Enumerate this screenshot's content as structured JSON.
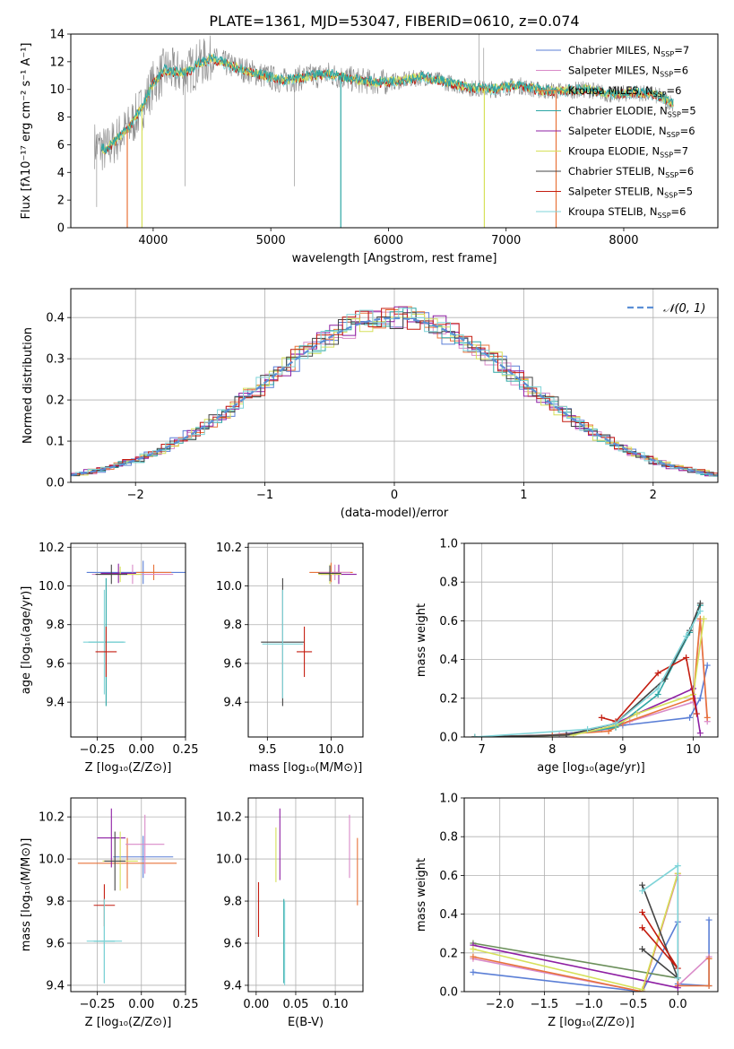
{
  "figure": {
    "title": "PLATE=1361, MJD=53047, FIBERID=0610, z=0.074",
    "colors": {
      "chabrier_miles": "#5b7fd6",
      "salpeter_miles": "#d98ac8",
      "kroupa_miles": "#2ca6a4",
      "chabrier_elodie": "#6b8f5a",
      "salpeter_elodie": "#8e1fa3",
      "kroupa_elodie": "#d6e05a",
      "chabrier_stelib": "#444444",
      "salpeter_stelib": "#c41d10",
      "kroupa_stelib": "#7fd4d8",
      "miles_orange": "#e8733a",
      "spectrum_gray": "#888888"
    }
  },
  "chart_data": [
    {
      "type": "line",
      "id": "spectrum",
      "title": "PLATE=1361, MJD=53047, FIBERID=0610, z=0.074",
      "xlabel": "wavelength [Angstrom, rest frame]",
      "ylabel": "Flux [fλ10⁻¹⁷ erg cm⁻² s⁻¹ A⁻¹]",
      "xlim": [
        3300,
        8800
      ],
      "ylim": [
        0,
        14
      ],
      "xticks": [
        "4000",
        "5000",
        "6000",
        "7000",
        "8000"
      ],
      "xtick_values": [
        4000,
        5000,
        6000,
        7000,
        8000
      ],
      "yticks": [
        "0",
        "2",
        "4",
        "6",
        "8",
        "10",
        "12",
        "14"
      ],
      "ytick_values": [
        0,
        2,
        4,
        6,
        8,
        10,
        12,
        14
      ],
      "legend_position": "top-right",
      "legend": [
        {
          "label": "Chabrier MILES, N",
          "sub": "SSP",
          "tail": "=7",
          "color": "#5b7fd6"
        },
        {
          "label": "Salpeter MILES, N",
          "sub": "SSP",
          "tail": "=6",
          "color": "#d98ac8"
        },
        {
          "label": "Kroupa MILES, N",
          "sub": "SSP",
          "tail": "=6",
          "color": "#e8733a"
        },
        {
          "label": "Chabrier ELODIE, N",
          "sub": "SSP",
          "tail": "=5",
          "color": "#2ca6a4"
        },
        {
          "label": "Salpeter ELODIE, N",
          "sub": "SSP",
          "tail": "=6",
          "color": "#8e1fa3"
        },
        {
          "label": "Kroupa ELODIE, N",
          "sub": "SSP",
          "tail": "=7",
          "color": "#d6e05a"
        },
        {
          "label": "Chabrier STELIB, N",
          "sub": "SSP",
          "tail": "=6",
          "color": "#444444"
        },
        {
          "label": "Salpeter STELIB, N",
          "sub": "SSP",
          "tail": "=5",
          "color": "#c41d10"
        },
        {
          "label": "Kroupa STELIB, N",
          "sub": "SSP",
          "tail": "=6",
          "color": "#7fd4d8"
        }
      ],
      "continuum": {
        "x": [
          3500,
          3600,
          3700,
          3800,
          3900,
          4000,
          4100,
          4200,
          4300,
          4400,
          4500,
          4700,
          4900,
          5100,
          5300,
          5500,
          5700,
          5900,
          6100,
          6300,
          6500,
          6700,
          6900,
          7100,
          7300,
          7500,
          7700,
          7900,
          8100,
          8300,
          8420
        ],
        "y": [
          6.0,
          5.6,
          6.5,
          7.3,
          8.6,
          10.4,
          11.4,
          11.2,
          11.3,
          11.9,
          12.2,
          11.6,
          11.1,
          10.6,
          10.9,
          11.1,
          10.7,
          10.5,
          10.6,
          10.9,
          10.5,
          10.1,
          10.0,
          10.3,
          9.9,
          9.9,
          10.0,
          9.6,
          9.8,
          9.5,
          9.0
        ]
      },
      "drops": [
        {
          "x": 3780,
          "color": "#e8733a"
        },
        {
          "x": 3905,
          "color": "#d6e05a"
        },
        {
          "x": 5595,
          "color": "#2ca6a4"
        },
        {
          "x": 6815,
          "color": "#d6e05a"
        },
        {
          "x": 7425,
          "color": "#e8733a"
        }
      ]
    },
    {
      "type": "line",
      "id": "residuals",
      "xlabel": "(data-model)/error",
      "ylabel": "Normed distribution",
      "xlim": [
        -2.5,
        2.5
      ],
      "ylim": [
        0,
        0.47
      ],
      "xticks": [
        "−2",
        "−1",
        "0",
        "1",
        "2"
      ],
      "xtick_values": [
        -2,
        -1,
        0,
        1,
        2
      ],
      "yticks": [
        "0.0",
        "0.1",
        "0.2",
        "0.3",
        "0.4"
      ],
      "ytick_values": [
        0,
        0.1,
        0.2,
        0.3,
        0.4
      ],
      "grid": true,
      "legend_position": "top-right",
      "legend_label": "𝒩(0, 1)",
      "series": [
        {
          "name": "N(0,1)",
          "values": "gaussian",
          "color": "#5b8fd6"
        }
      ],
      "bin_width": 0.1,
      "hist_count": 9
    },
    {
      "type": "scatter",
      "id": "z-age",
      "xlabel": "Z [log₁₀(Z/Z⊙)]",
      "ylabel": "age  [log₁₀(age/yr)]",
      "xlim": [
        -0.4,
        0.25
      ],
      "ylim": [
        9.22,
        10.22
      ],
      "xticks": [
        "−0.25",
        "0.00",
        "0.25"
      ],
      "xtick_values": [
        -0.25,
        0.0,
        0.25
      ],
      "yticks": [
        "9.4",
        "9.6",
        "9.8",
        "10.0",
        "10.2"
      ],
      "ytick_values": [
        9.4,
        9.6,
        9.8,
        10.0,
        10.2
      ],
      "grid": true,
      "points": [
        {
          "x": 0.01,
          "y": 10.07,
          "xerr": 0.32,
          "yerr": 0.06,
          "color": "#5b7fd6"
        },
        {
          "x": 0.07,
          "y": 10.07,
          "xerr": 0.1,
          "yerr": 0.04,
          "color": "#e8733a"
        },
        {
          "x": -0.05,
          "y": 10.06,
          "xerr": 0.23,
          "yerr": 0.05,
          "color": "#d98ac8"
        },
        {
          "x": -0.13,
          "y": 10.065,
          "xerr": 0.1,
          "yerr": 0.05,
          "color": "#8e1fa3"
        },
        {
          "x": -0.12,
          "y": 10.06,
          "xerr": 0.12,
          "yerr": 0.04,
          "color": "#d6e05a"
        },
        {
          "x": -0.17,
          "y": 10.06,
          "xerr": 0.09,
          "yerr": 0.05,
          "color": "#444444"
        },
        {
          "x": -0.2,
          "y": 9.71,
          "xerr": 0.1,
          "yerr": 0.33,
          "color": "#2ca6a4"
        },
        {
          "x": -0.21,
          "y": 9.71,
          "xerr": 0.12,
          "yerr": 0.27,
          "color": "#7fd4d8"
        },
        {
          "x": -0.2,
          "y": 9.66,
          "xerr": 0.06,
          "yerr": 0.13,
          "color": "#c41d10"
        }
      ]
    },
    {
      "type": "scatter",
      "id": "mass-age",
      "xlabel": "mass [log₁₀(M/M⊙)]",
      "ylabel": "",
      "xlim": [
        9.35,
        10.25
      ],
      "ylim": [
        9.22,
        10.22
      ],
      "xticks": [
        "9.5",
        "10.0"
      ],
      "xtick_values": [
        9.5,
        10.0
      ],
      "yticks": [
        "9.4",
        "9.6",
        "9.8",
        "10.0",
        "10.2"
      ],
      "ytick_values": [
        9.4,
        9.6,
        9.8,
        10.0,
        10.2
      ],
      "grid": true,
      "points": [
        {
          "x": 10.0,
          "y": 10.07,
          "xerr": 0.17,
          "yerr": 0.05,
          "color": "#e8733a"
        },
        {
          "x": 10.06,
          "y": 10.06,
          "xerr": 0.14,
          "yerr": 0.05,
          "color": "#8e1fa3"
        },
        {
          "x": 9.99,
          "y": 10.06,
          "xerr": 0.09,
          "yerr": 0.05,
          "color": "#d6e05a"
        },
        {
          "x": 10.03,
          "y": 10.07,
          "xerr": 0.12,
          "yerr": 0.04,
          "color": "#d98ac8"
        },
        {
          "x": 9.99,
          "y": 10.065,
          "xerr": 0.09,
          "yerr": 0.04,
          "color": "#444444"
        },
        {
          "x": 9.62,
          "y": 9.71,
          "xerr": 0.17,
          "yerr": 0.33,
          "color": "#444444"
        },
        {
          "x": 9.62,
          "y": 9.7,
          "xerr": 0.16,
          "yerr": 0.28,
          "color": "#7fd4d8"
        },
        {
          "x": 9.79,
          "y": 9.66,
          "xerr": 0.06,
          "yerr": 0.13,
          "color": "#c41d10"
        }
      ]
    },
    {
      "type": "line",
      "id": "age-weight",
      "xlabel": "age  [log₁₀(age/yr)]",
      "ylabel": "mass weight",
      "xlim": [
        6.75,
        10.35
      ],
      "ylim": [
        0,
        1
      ],
      "xticks": [
        "7",
        "8",
        "9",
        "10"
      ],
      "xtick_values": [
        7,
        8,
        9,
        10
      ],
      "yticks": [
        "0.0",
        "0.2",
        "0.4",
        "0.6",
        "0.8",
        "1.0"
      ],
      "ytick_values": [
        0,
        0.2,
        0.4,
        0.6,
        0.8,
        1.0
      ],
      "grid": true,
      "series": [
        {
          "name": "Chabrier MILES",
          "color": "#5b7fd6",
          "x": [
            6.9,
            8.0,
            8.7,
            9.0,
            9.95,
            10.1,
            10.2
          ],
          "values": [
            0.0,
            0.01,
            0.04,
            0.06,
            0.1,
            0.2,
            0.37
          ]
        },
        {
          "name": "Salpeter MILES",
          "color": "#d98ac8",
          "x": [
            6.9,
            8.1,
            8.8,
            9.1,
            10.0,
            10.1,
            10.2
          ],
          "values": [
            0.0,
            0.01,
            0.04,
            0.08,
            0.18,
            0.6,
            0.08
          ]
        },
        {
          "name": "Kroupa MILES",
          "color": "#e8733a",
          "x": [
            6.9,
            8.0,
            8.8,
            9.0,
            10.0,
            10.1,
            10.2
          ],
          "values": [
            0.0,
            0.01,
            0.03,
            0.07,
            0.2,
            0.61,
            0.1
          ]
        },
        {
          "name": "Chabrier ELODIE",
          "color": "#2ca6a4",
          "x": [
            6.9,
            8.2,
            8.9,
            9.5,
            9.95,
            10.1
          ],
          "values": [
            0.0,
            0.01,
            0.05,
            0.22,
            0.54,
            0.68
          ]
        },
        {
          "name": "Salpeter ELODIE",
          "color": "#8e1fa3",
          "x": [
            6.9,
            8.2,
            8.9,
            9.2,
            10.0,
            10.1
          ],
          "values": [
            0.0,
            0.01,
            0.07,
            0.12,
            0.25,
            0.02
          ]
        },
        {
          "name": "Kroupa ELODIE",
          "color": "#d6e05a",
          "x": [
            6.9,
            8.3,
            8.9,
            9.2,
            10.0,
            10.15
          ],
          "values": [
            0.0,
            0.01,
            0.06,
            0.12,
            0.22,
            0.61
          ]
        },
        {
          "name": "Chabrier STELIB",
          "color": "#444444",
          "x": [
            6.9,
            8.2,
            8.9,
            9.6,
            9.95,
            10.1
          ],
          "values": [
            0.0,
            0.01,
            0.07,
            0.3,
            0.55,
            0.69
          ]
        },
        {
          "name": "Salpeter STELIB",
          "color": "#c41d10",
          "x": [
            8.7,
            8.9,
            9.5,
            9.9,
            10.05
          ],
          "values": [
            0.1,
            0.08,
            0.33,
            0.41,
            0.12
          ]
        },
        {
          "name": "Kroupa STELIB",
          "color": "#7fd4d8",
          "x": [
            6.9,
            8.5,
            8.9,
            9.5,
            9.9,
            10.1
          ],
          "values": [
            0.0,
            0.04,
            0.07,
            0.25,
            0.52,
            0.65
          ]
        }
      ]
    },
    {
      "type": "scatter",
      "id": "z-mass",
      "xlabel": "Z [log₁₀(Z/Z⊙)]",
      "ylabel": "mass [log₁₀(M/M⊙)]",
      "xlim": [
        -0.4,
        0.25
      ],
      "ylim": [
        9.37,
        10.29
      ],
      "xticks": [
        "−0.25",
        "0.00",
        "0.25"
      ],
      "xtick_values": [
        -0.25,
        0.0,
        0.25
      ],
      "yticks": [
        "9.4",
        "9.6",
        "9.8",
        "10.0",
        "10.2"
      ],
      "ytick_values": [
        9.4,
        9.6,
        9.8,
        10.0,
        10.2
      ],
      "grid": true,
      "points": [
        {
          "x": 0.01,
          "y": 10.01,
          "xerr": 0.17,
          "yerr": 0.1,
          "color": "#5b7fd6"
        },
        {
          "x": -0.08,
          "y": 9.98,
          "xerr": 0.28,
          "yerr": 0.12,
          "color": "#e8733a"
        },
        {
          "x": -0.17,
          "y": 10.1,
          "xerr": 0.08,
          "yerr": 0.14,
          "color": "#8e1fa3"
        },
        {
          "x": 0.02,
          "y": 10.07,
          "xerr": 0.11,
          "yerr": 0.14,
          "color": "#d98ac8"
        },
        {
          "x": -0.12,
          "y": 9.99,
          "xerr": 0.1,
          "yerr": 0.14,
          "color": "#d6e05a"
        },
        {
          "x": -0.15,
          "y": 9.99,
          "xerr": 0.06,
          "yerr": 0.14,
          "color": "#444444"
        },
        {
          "x": -0.21,
          "y": 9.61,
          "xerr": 0.06,
          "yerr": 0.2,
          "color": "#2ca6a4"
        },
        {
          "x": -0.21,
          "y": 9.78,
          "xerr": 0.06,
          "yerr": 0.1,
          "color": "#c41d10"
        },
        {
          "x": -0.21,
          "y": 9.61,
          "xerr": 0.1,
          "yerr": 0.2,
          "color": "#7fd4d8"
        }
      ]
    },
    {
      "type": "scatter",
      "id": "ebv-mass",
      "xlabel": "E(B-V)",
      "ylabel": "",
      "xlim": [
        -0.01,
        0.135
      ],
      "ylim": [
        9.37,
        10.29
      ],
      "xticks": [
        "0.00",
        "0.05",
        "0.10"
      ],
      "xtick_values": [
        0.0,
        0.05,
        0.1
      ],
      "yticks": [
        "9.4",
        "9.6",
        "9.8",
        "10.0",
        "10.2"
      ],
      "ytick_values": [
        9.4,
        9.6,
        9.8,
        10.0,
        10.2
      ],
      "grid": true,
      "points": [
        {
          "x": 0.003,
          "y": 9.76,
          "xerr": 0,
          "yerr": 0.13,
          "color": "#c41d10"
        },
        {
          "x": 0.025,
          "y": 10.02,
          "xerr": 0,
          "yerr": 0.13,
          "color": "#d6e05a"
        },
        {
          "x": 0.03,
          "y": 10.07,
          "xerr": 0,
          "yerr": 0.17,
          "color": "#8e1fa3"
        },
        {
          "x": 0.035,
          "y": 9.61,
          "xerr": 0,
          "yerr": 0.2,
          "color": "#2ca6a4"
        },
        {
          "x": 0.036,
          "y": 9.6,
          "xerr": 0,
          "yerr": 0.2,
          "color": "#7fd4d8"
        },
        {
          "x": 0.118,
          "y": 10.06,
          "xerr": 0,
          "yerr": 0.15,
          "color": "#d98ac8"
        },
        {
          "x": 0.128,
          "y": 9.94,
          "xerr": 0,
          "yerr": 0.16,
          "color": "#e8733a"
        }
      ]
    },
    {
      "type": "line",
      "id": "z-weight",
      "xlabel": "Z [log₁₀(Z/Z⊙)]",
      "ylabel": "mass weight",
      "xlim": [
        -2.4,
        0.45
      ],
      "ylim": [
        0,
        1
      ],
      "xticks": [
        "−2.0",
        "−1.5",
        "−1.0",
        "−0.5",
        "0.0"
      ],
      "xtick_values": [
        -2.0,
        -1.5,
        -1.0,
        -0.5,
        0.0
      ],
      "yticks": [
        "0.0",
        "0.2",
        "0.4",
        "0.6",
        "0.8",
        "1.0"
      ],
      "ytick_values": [
        0,
        0.2,
        0.4,
        0.6,
        0.8,
        1.0
      ],
      "grid": true,
      "series": [
        {
          "name": "Chabrier MILES",
          "color": "#5b7fd6",
          "x": [
            -2.3,
            -0.4,
            0.0,
            0.0,
            0.35,
            0.35
          ],
          "values": [
            0.1,
            0.0,
            0.36,
            0.04,
            0.03,
            0.37
          ]
        },
        {
          "name": "Salpeter MILES",
          "color": "#d98ac8",
          "x": [
            -2.3,
            -0.4,
            0.0,
            0.0,
            0.35
          ],
          "values": [
            0.17,
            0.0,
            0.6,
            0.03,
            0.18
          ]
        },
        {
          "name": "Kroupa MILES",
          "color": "#e8733a",
          "x": [
            -2.3,
            -0.4,
            0.0,
            0.0,
            0.35,
            0.35
          ],
          "values": [
            0.18,
            0.0,
            0.61,
            0.03,
            0.03,
            0.17
          ]
        },
        {
          "name": "Chabrier ELODIE",
          "color": "#6b8f5a",
          "x": [
            -2.3,
            0.0
          ],
          "values": [
            0.25,
            0.07
          ]
        },
        {
          "name": "Salpeter ELODIE",
          "color": "#8e1fa3",
          "x": [
            -2.3,
            0.0
          ],
          "values": [
            0.24,
            0.02
          ]
        },
        {
          "name": "Kroupa ELODIE",
          "color": "#d6e05a",
          "x": [
            -2.3,
            -0.4,
            0.0
          ],
          "values": [
            0.22,
            0.01,
            0.61
          ]
        },
        {
          "name": "Chabrier STELIB",
          "color": "#444444",
          "x": [
            -0.4,
            0.0,
            -0.4
          ],
          "values": [
            0.55,
            0.07,
            0.22
          ]
        },
        {
          "name": "Salpeter STELIB",
          "color": "#c41d10",
          "x": [
            -0.4,
            0.0,
            -0.4
          ],
          "values": [
            0.41,
            0.12,
            0.33
          ]
        },
        {
          "name": "Kroupa STELIB",
          "color": "#7fd4d8",
          "x": [
            -0.4,
            0.0,
            0.0
          ],
          "values": [
            0.52,
            0.65,
            0.07
          ]
        }
      ]
    }
  ]
}
